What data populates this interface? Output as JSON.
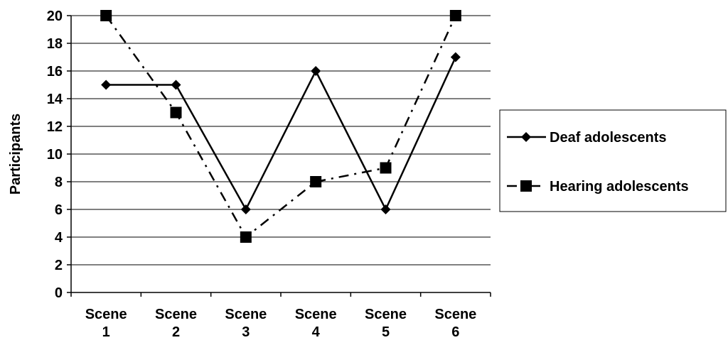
{
  "chart_data": {
    "type": "line",
    "title": "",
    "xlabel": "",
    "ylabel": "Participants",
    "ylim": [
      0,
      20
    ],
    "yticks": [
      "0",
      "2",
      "4",
      "6",
      "8",
      "10",
      "12",
      "14",
      "16",
      "18",
      "20"
    ],
    "categories": [
      [
        "Scene",
        "1"
      ],
      [
        "Scene",
        "2"
      ],
      [
        "Scene",
        "3"
      ],
      [
        "Scene",
        "4"
      ],
      [
        "Scene",
        "5"
      ],
      [
        "Scene",
        "6"
      ]
    ],
    "grid": "horizontal",
    "legend_position": "right",
    "series": [
      {
        "name": "Deaf adolescents",
        "values": [
          15,
          15,
          6,
          16,
          6,
          17
        ],
        "marker": "diamond",
        "line_style": "solid",
        "color": "#000000"
      },
      {
        "name": "Hearing adolescents",
        "values": [
          20,
          13,
          4,
          8,
          9,
          20
        ],
        "marker": "square",
        "line_style": "dash-dot",
        "color": "#000000"
      }
    ]
  }
}
